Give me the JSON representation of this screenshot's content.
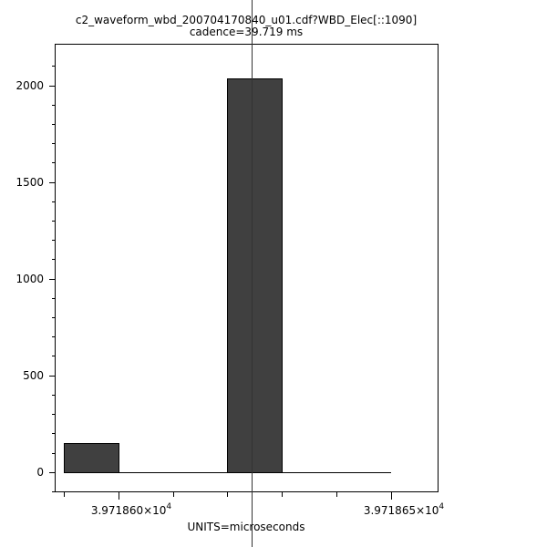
{
  "chart_data": {
    "type": "bar",
    "title": "c2_waveform_wbd_200704170840_u01.cdf?WBD_Elec[::1090]",
    "subtitle": "cadence=39.719 ms",
    "xlabel": "UNITS=microseconds",
    "ylabel": "",
    "bins": [
      {
        "x0": 39718.59,
        "x1": 39718.6,
        "value": 150
      },
      {
        "x0": 39718.6,
        "x1": 39718.61,
        "value": 0
      },
      {
        "x0": 39718.61,
        "x1": 39718.62,
        "value": 0
      },
      {
        "x0": 39718.62,
        "x1": 39718.63,
        "value": 2036
      },
      {
        "x0": 39718.63,
        "x1": 39718.64,
        "value": 0
      },
      {
        "x0": 39718.64,
        "x1": 39718.65,
        "value": 0
      }
    ],
    "xlim": [
      39718.5883,
      39718.6586
    ],
    "ylim": [
      -105,
      2215
    ],
    "yticks": [
      0,
      500,
      1000,
      1500,
      2000
    ],
    "ytick_labels": [
      "0",
      "500",
      "1000",
      "1500",
      "2000"
    ],
    "xticks": [
      39718.6,
      39718.65
    ],
    "xtick_labels": [
      {
        "mantissa": "3.971860×10",
        "exponent": "4"
      },
      {
        "mantissa": "3.971865×10",
        "exponent": "4"
      }
    ],
    "bar_color": "#404040",
    "grid": false,
    "cursor_x": 39718.6244
  }
}
